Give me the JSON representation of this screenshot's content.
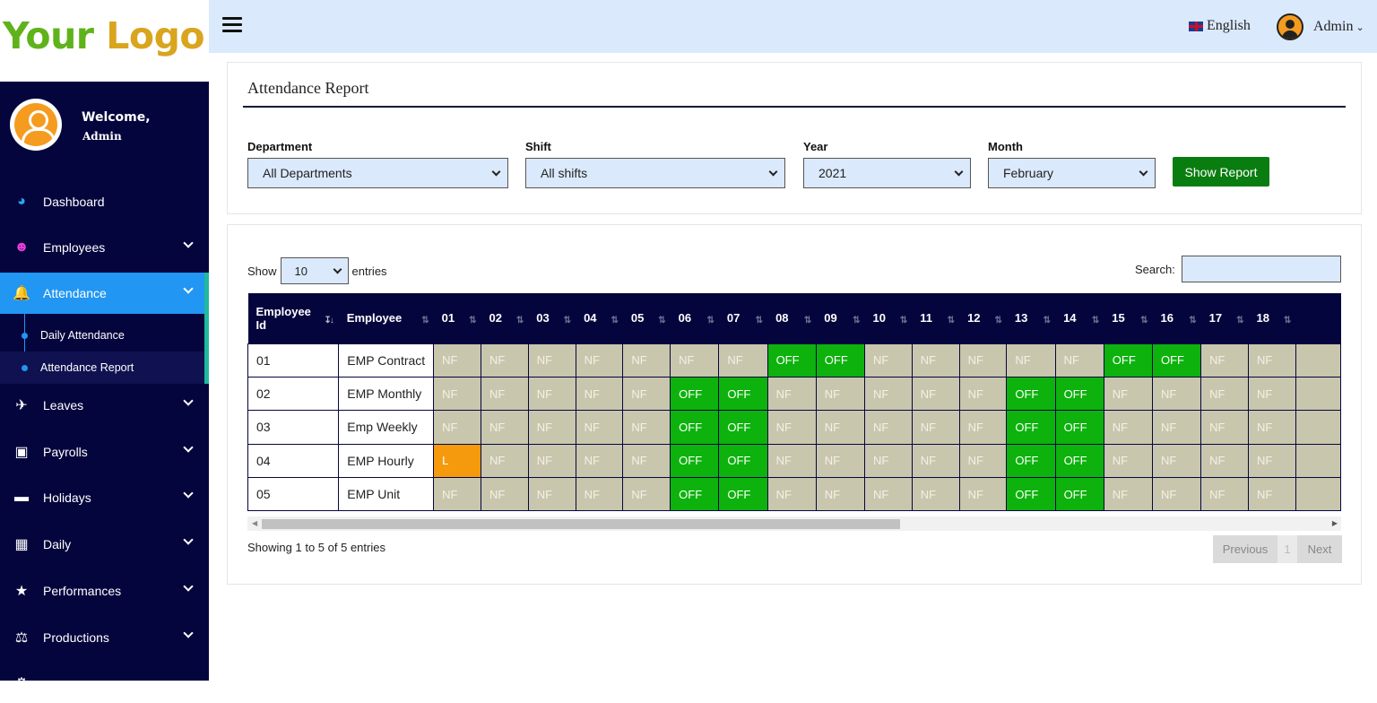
{
  "logo": {
    "part1": "Your ",
    "part2": "Logo"
  },
  "topbar": {
    "language": "English",
    "user": "Admin"
  },
  "sidebar": {
    "welcome": "Welcome,",
    "username": "Admin",
    "items": [
      {
        "label": "Dashboard",
        "icon": "dashboard-icon"
      },
      {
        "label": "Employees",
        "icon": "users-icon"
      },
      {
        "label": "Attendance",
        "icon": "bell-icon"
      },
      {
        "label": "Leaves",
        "icon": "plane-icon"
      },
      {
        "label": "Payrolls",
        "icon": "money-icon"
      },
      {
        "label": "Holidays",
        "icon": "bed-icon"
      },
      {
        "label": "Daily",
        "icon": "archive-icon"
      },
      {
        "label": "Performances",
        "icon": "trophy-icon"
      },
      {
        "label": "Productions",
        "icon": "scale-icon"
      }
    ],
    "subitems": [
      {
        "label": "Daily Attendance"
      },
      {
        "label": "Attendance Report"
      }
    ]
  },
  "filters": {
    "title": "Attendance Report",
    "department": {
      "label": "Department",
      "value": "All Departments"
    },
    "shift": {
      "label": "Shift",
      "value": "All shifts"
    },
    "year": {
      "label": "Year",
      "value": "2021"
    },
    "month": {
      "label": "Month",
      "value": "February"
    },
    "button": "Show Report"
  },
  "table": {
    "show_label": "Show",
    "entries_value": "10",
    "entries_label": "entries",
    "search_label": "Search:",
    "headers": [
      "Employee Id",
      "Employee",
      "01",
      "02",
      "03",
      "04",
      "05",
      "06",
      "07",
      "08",
      "09",
      "10",
      "11",
      "12",
      "13",
      "14",
      "15",
      "16",
      "17",
      "18"
    ],
    "rows": [
      {
        "id": "01",
        "name": "EMP Contract",
        "days": [
          "NF",
          "NF",
          "NF",
          "NF",
          "NF",
          "NF",
          "NF",
          "OFF",
          "OFF",
          "NF",
          "NF",
          "NF",
          "NF",
          "NF",
          "OFF",
          "OFF",
          "NF",
          "NF"
        ]
      },
      {
        "id": "02",
        "name": "EMP Monthly",
        "days": [
          "NF",
          "NF",
          "NF",
          "NF",
          "NF",
          "OFF",
          "OFF",
          "NF",
          "NF",
          "NF",
          "NF",
          "NF",
          "OFF",
          "OFF",
          "NF",
          "NF",
          "NF",
          "NF"
        ]
      },
      {
        "id": "03",
        "name": "Emp Weekly",
        "days": [
          "NF",
          "NF",
          "NF",
          "NF",
          "NF",
          "OFF",
          "OFF",
          "NF",
          "NF",
          "NF",
          "NF",
          "NF",
          "OFF",
          "OFF",
          "NF",
          "NF",
          "NF",
          "NF"
        ]
      },
      {
        "id": "04",
        "name": "EMP Hourly",
        "days": [
          "L",
          "NF",
          "NF",
          "NF",
          "NF",
          "OFF",
          "OFF",
          "NF",
          "NF",
          "NF",
          "NF",
          "NF",
          "OFF",
          "OFF",
          "NF",
          "NF",
          "NF",
          "NF"
        ]
      },
      {
        "id": "05",
        "name": "EMP Unit",
        "days": [
          "NF",
          "NF",
          "NF",
          "NF",
          "NF",
          "OFF",
          "OFF",
          "NF",
          "NF",
          "NF",
          "NF",
          "NF",
          "OFF",
          "OFF",
          "NF",
          "NF",
          "NF",
          "NF"
        ]
      }
    ],
    "info_prefix": "Showing ",
    "info_from": "1",
    "info_mid1": " to ",
    "info_to": "5",
    "info_mid2": " of ",
    "info_total": "5",
    "info_suffix": " entries",
    "prev": "Previous",
    "page": "1",
    "next": "Next"
  },
  "colors": {
    "sidebar": "#05053e",
    "accent": "#2196f3",
    "nf": "#c9c6ae",
    "off": "#0db20d",
    "leave": "#f59a0c",
    "button": "#0a7d10"
  }
}
